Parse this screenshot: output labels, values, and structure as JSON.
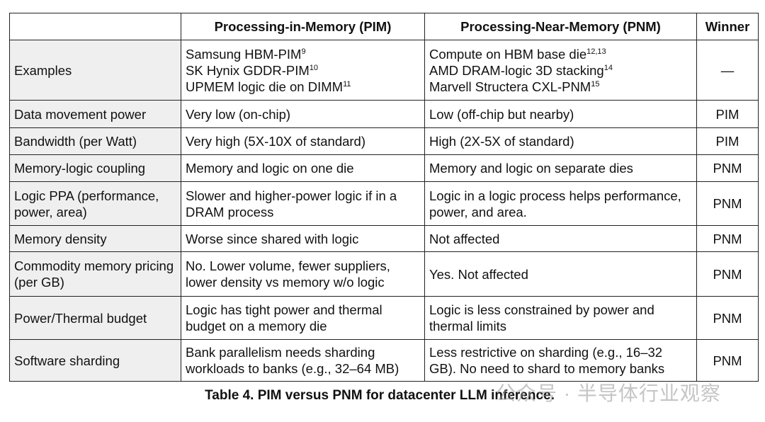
{
  "table": {
    "header": [
      "",
      "Processing-in-Memory (PIM)",
      "Processing-Near-Memory (PNM)",
      "Winner"
    ],
    "rows": [
      [
        "Examples",
        {
          "lines": [
            {
              "text": "Samsung HBM-PIM",
              "sup": "9"
            },
            {
              "text": "SK Hynix GDDR-PIM",
              "sup": "10"
            },
            {
              "text": "UPMEM logic die on DIMM",
              "sup": "11"
            }
          ]
        },
        {
          "lines": [
            {
              "text": "Compute on HBM base die",
              "sup": "12,13"
            },
            {
              "text": "AMD DRAM-logic 3D stacking",
              "sup": "14"
            },
            {
              "text": "Marvell Structera CXL-PNM",
              "sup": "15"
            }
          ]
        },
        "—"
      ],
      [
        "Data movement power",
        "Very low (on-chip)",
        "Low (off-chip but nearby)",
        "PIM"
      ],
      [
        "Bandwidth (per Watt)",
        "Very high (5X-10X of standard)",
        "High (2X-5X of standard)",
        "PIM"
      ],
      [
        "Memory-logic coupling",
        "Memory and logic on one die",
        "Memory and logic on separate dies",
        "PNM"
      ],
      [
        "Logic PPA (performance, power, area)",
        "Slower and higher-power logic if in a DRAM process",
        "Logic in a logic process helps performance, power, and area.",
        "PNM"
      ],
      [
        "Memory density",
        "Worse since shared with logic",
        "Not affected",
        "PNM"
      ],
      [
        "Commodity memory pricing (per GB)",
        "No. Lower volume, fewer suppliers, lower density vs memory w/o logic",
        "Yes. Not affected",
        "PNM"
      ],
      [
        "Power/Thermal budget",
        "Logic has tight power and thermal budget on a memory die",
        "Logic is less constrained by power and thermal limits",
        "PNM"
      ],
      [
        "Software sharding",
        "Bank parallelism needs sharding workloads to banks (e.g., 32–64 MB)",
        "Less restrictive on sharding (e.g., 16–32 GB). No need to shard to memory banks",
        "PNM"
      ]
    ]
  },
  "caption": "Table 4. PIM versus PNM for datacenter LLM inference.",
  "watermark": "公众号 · 半导体行业观察"
}
